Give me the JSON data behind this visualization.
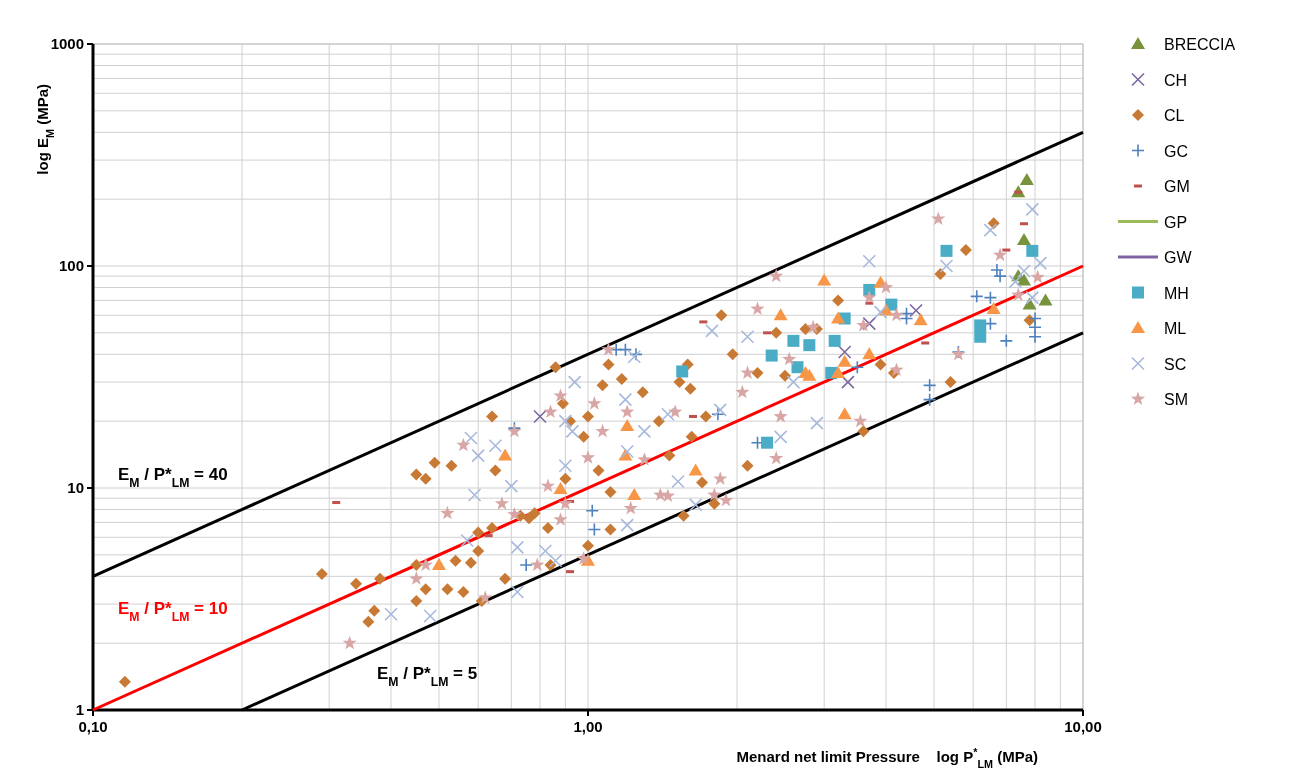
{
  "chart_data": {
    "type": "scatter",
    "xlabel": "Menard net limit Pressure    log P$^{*}$$_{LM}$ (MPa)",
    "ylabel": "log E$_{M}$ (MPa)",
    "log": "xy",
    "grid": true,
    "legend": "right",
    "xlim": [
      0.1,
      10
    ],
    "ylim": [
      1,
      1000
    ],
    "xticks": [
      {
        "value": 0.1,
        "label": "0,10"
      },
      {
        "value": 0.2,
        "label": null
      },
      {
        "value": 0.3,
        "label": null
      },
      {
        "value": 0.4,
        "label": null
      },
      {
        "value": 0.5,
        "label": null
      },
      {
        "value": 0.6,
        "label": null
      },
      {
        "value": 0.7,
        "label": null
      },
      {
        "value": 0.8,
        "label": null
      },
      {
        "value": 0.9,
        "label": null
      },
      {
        "value": 1,
        "label": "1,00"
      },
      {
        "value": 2,
        "label": null
      },
      {
        "value": 3,
        "label": null
      },
      {
        "value": 4,
        "label": null
      },
      {
        "value": 5,
        "label": null
      },
      {
        "value": 6,
        "label": null
      },
      {
        "value": 7,
        "label": null
      },
      {
        "value": 8,
        "label": null
      },
      {
        "value": 9,
        "label": null
      },
      {
        "value": 10,
        "label": "10,00"
      }
    ],
    "yticks": [
      1,
      {
        "value": 2,
        "label": null
      },
      {
        "value": 3,
        "label": null
      },
      {
        "value": 4,
        "label": null
      },
      {
        "value": 5,
        "label": null
      },
      {
        "value": 6,
        "label": null
      },
      {
        "value": 7,
        "label": null
      },
      {
        "value": 8,
        "label": null
      },
      {
        "value": 9,
        "label": null
      },
      10,
      {
        "value": 20,
        "label": null
      },
      {
        "value": 30,
        "label": null
      },
      {
        "value": 40,
        "label": null
      },
      {
        "value": 50,
        "label": null
      },
      {
        "value": 60,
        "label": null
      },
      {
        "value": 70,
        "label": null
      },
      {
        "value": 80,
        "label": null
      },
      {
        "value": 90,
        "label": null
      },
      100,
      {
        "value": 200,
        "label": null
      },
      {
        "value": 300,
        "label": null
      },
      {
        "value": 400,
        "label": null
      },
      {
        "value": 500,
        "label": null
      },
      {
        "value": 600,
        "label": null
      },
      {
        "value": 700,
        "label": null
      },
      {
        "value": 800,
        "label": null
      },
      {
        "value": 900,
        "label": null
      },
      1000
    ],
    "series": [
      {
        "name": "E$_{M}$ / P*$_{LM}$ = 40",
        "type": "line",
        "color": "#000000",
        "marker": "none",
        "x": [
          0.1,
          10
        ],
        "values": [
          4,
          400
        ]
      },
      {
        "name": "E$_{M}$ / P*$_{LM}$ = 10",
        "type": "line",
        "color": "#ff0000",
        "marker": "none",
        "x": [
          0.1,
          10
        ],
        "values": [
          1,
          100
        ]
      },
      {
        "name": "E$_{M}$ / P*$_{LM}$ = 5",
        "type": "line",
        "color": "#000000",
        "marker": "none",
        "x": [
          0.2,
          10
        ],
        "values": [
          1,
          50
        ]
      },
      {
        "name": "BRECCIA",
        "color": "#77933c",
        "marker": "triangle",
        "x": [
          7.7,
          7.4,
          7.6,
          7.4,
          7.6,
          7.8,
          8.4
        ],
        "values": [
          244,
          215,
          131,
          90,
          86,
          67,
          70
        ]
      },
      {
        "name": "CH",
        "color": "#7c68a0",
        "marker": "x",
        "x": [
          0.8,
          4.6,
          3.7,
          3.3,
          3.35
        ],
        "values": [
          21,
          63,
          55,
          41,
          30
        ]
      },
      {
        "name": "CL",
        "color": "#c87a35",
        "marker": "diamond",
        "x": [
          0.116,
          0.29,
          0.34,
          0.38,
          0.37,
          0.36,
          0.45,
          0.45,
          0.47,
          0.45,
          0.47,
          0.49,
          0.53,
          0.52,
          0.54,
          0.56,
          0.58,
          0.6,
          0.61,
          0.6,
          0.64,
          0.64,
          0.65,
          0.68,
          0.73,
          0.76,
          0.78,
          0.83,
          0.84,
          0.86,
          0.89,
          0.9,
          0.92,
          0.98,
          1.0,
          1.0,
          1.05,
          1.07,
          1.1,
          1.11,
          1.11,
          1.17,
          1.29,
          1.39,
          1.46,
          1.53,
          1.56,
          1.59,
          1.61,
          1.62,
          1.7,
          1.73,
          1.8,
          1.86,
          1.96,
          2.1,
          2.2,
          2.4,
          2.5,
          2.75,
          2.9,
          3.2,
          3.9,
          4.15,
          5.15,
          5.4,
          3.6,
          5.8,
          6.6,
          7.8
        ],
        "values": [
          1.34,
          4.1,
          3.7,
          3.9,
          2.8,
          2.5,
          4.5,
          3.1,
          3.5,
          11.5,
          11,
          13,
          12.6,
          3.5,
          4.7,
          3.4,
          4.6,
          5.2,
          3.1,
          6.3,
          6.6,
          21,
          12,
          3.9,
          7.5,
          7.3,
          7.7,
          6.6,
          4.5,
          35,
          24,
          11,
          20,
          17,
          5.5,
          21,
          12,
          29,
          36,
          9.6,
          6.5,
          31,
          27,
          20,
          14,
          30,
          7.5,
          36,
          28,
          17,
          10.6,
          21,
          8.5,
          60,
          40,
          12.6,
          33,
          50,
          32,
          52,
          52,
          70,
          36,
          33,
          92,
          30,
          18,
          118,
          156,
          57
        ]
      },
      {
        "name": "GC",
        "color": "#4f81bd",
        "marker": "cross",
        "x": [
          0.71,
          0.75,
          1.02,
          1.03,
          1.14,
          1.19,
          1.25,
          1.83,
          2.2,
          6.7,
          6.8,
          6.1,
          6.5,
          4.4,
          4.4,
          3.5,
          6.5,
          7.0,
          8.0,
          8.0,
          8.0,
          5.6,
          4.9,
          4.9
        ],
        "values": [
          18.6,
          4.5,
          7.9,
          6.5,
          42,
          42,
          40,
          21.5,
          16,
          96,
          90,
          73,
          72,
          61,
          58,
          35,
          55,
          46,
          58,
          53,
          48,
          41,
          29,
          25
        ]
      },
      {
        "name": "GM",
        "color": "#c0504d",
        "x": [
          0.31,
          0.63,
          0.92,
          0.92,
          1.71,
          2.3,
          1.63,
          4.8,
          3.7,
          7.4,
          7.6,
          7.0
        ],
        "values": [
          8.6,
          6.1,
          4.2,
          8.7,
          56,
          50,
          21,
          45,
          68,
          215,
          155,
          118
        ]
      },
      {
        "name": "GP",
        "type": "line",
        "color": "#9bbb59"
      },
      {
        "name": "GW",
        "type": "line",
        "color": "#8064a2"
      },
      {
        "name": "MH",
        "color": "#4bacc6",
        "marker": "square",
        "x": [
          1.55,
          2.3,
          2.6,
          2.8,
          2.35,
          2.65,
          3.1,
          3.15,
          5.3,
          7.9,
          3.7,
          4.1,
          3.3,
          6.2,
          6.2
        ],
        "values": [
          33.5,
          16,
          46,
          44,
          39.5,
          35,
          33,
          46,
          117,
          117,
          78,
          67,
          58,
          54,
          48
        ]
      },
      {
        "name": "ML",
        "color": "#f79646",
        "marker": "triangle",
        "x": [
          0.68,
          0.88,
          0.5,
          1.0,
          1.2,
          1.19,
          1.65,
          1.24,
          2.45,
          2.75,
          3.0,
          3.9,
          3.2,
          4.0,
          4.7,
          3.7,
          3.3,
          3.2,
          2.8,
          3.3,
          6.6
        ],
        "values": [
          14,
          9.9,
          4.5,
          4.7,
          19,
          14,
          12,
          9.3,
          60,
          33,
          86,
          84,
          58,
          63,
          57,
          40,
          37,
          33,
          32,
          21.5,
          64
        ]
      },
      {
        "name": "SC",
        "color": "#a7b9dc",
        "marker": "x",
        "x": [
          0.4,
          0.48,
          0.57,
          0.59,
          0.58,
          0.6,
          0.65,
          0.7,
          0.72,
          0.72,
          0.82,
          0.86,
          0.9,
          0.94,
          0.9,
          0.93,
          1.78,
          1.24,
          1.19,
          1.3,
          1.45,
          1.85,
          1.2,
          1.52,
          1.65,
          1.2,
          2.1,
          2.45,
          2.9,
          2.6,
          3.7,
          5.3,
          3.9,
          7.3,
          7.6,
          8.2,
          7.9,
          7.9,
          6.5
        ],
        "values": [
          2.7,
          2.65,
          5.8,
          9.3,
          16.8,
          14,
          15.5,
          10.2,
          5.4,
          3.4,
          5.2,
          4.7,
          12.6,
          30,
          20,
          18,
          51,
          39,
          25,
          18,
          21.5,
          22.5,
          14.6,
          10.7,
          8.4,
          6.8,
          48,
          17,
          19.6,
          30,
          105,
          100,
          62,
          85,
          95,
          103,
          72,
          180,
          145
        ]
      },
      {
        "name": "SM",
        "color": "#d9a6a6",
        "marker": "star",
        "x": [
          0.33,
          0.45,
          0.47,
          0.52,
          0.56,
          0.62,
          0.67,
          0.71,
          0.71,
          0.88,
          0.84,
          0.83,
          0.88,
          0.9,
          1.0,
          0.79,
          0.98,
          1.1,
          1.03,
          1.2,
          1.07,
          1.3,
          1.5,
          1.4,
          1.45,
          1.22,
          1.8,
          1.9,
          1.85,
          2.05,
          2.1,
          2.45,
          2.4,
          2.85,
          2.55,
          2.2,
          3.6,
          3.7,
          4.0,
          4.2,
          4.2,
          3.55,
          5.6,
          6.8,
          7.4,
          8.1,
          5.1,
          2.4
        ],
        "values": [
          2.0,
          3.9,
          4.5,
          7.7,
          15.6,
          3.2,
          8.5,
          7.6,
          18,
          26,
          22,
          10.2,
          7.2,
          8.5,
          13.7,
          4.5,
          4.8,
          42,
          24,
          22,
          18,
          13.4,
          22,
          9.3,
          9.2,
          8.1,
          9.3,
          8.8,
          11,
          27,
          33,
          21,
          13.6,
          53,
          38,
          64,
          54,
          72,
          80,
          60,
          34,
          20,
          40,
          112,
          74,
          89,
          163,
          90
        ]
      }
    ]
  }
}
